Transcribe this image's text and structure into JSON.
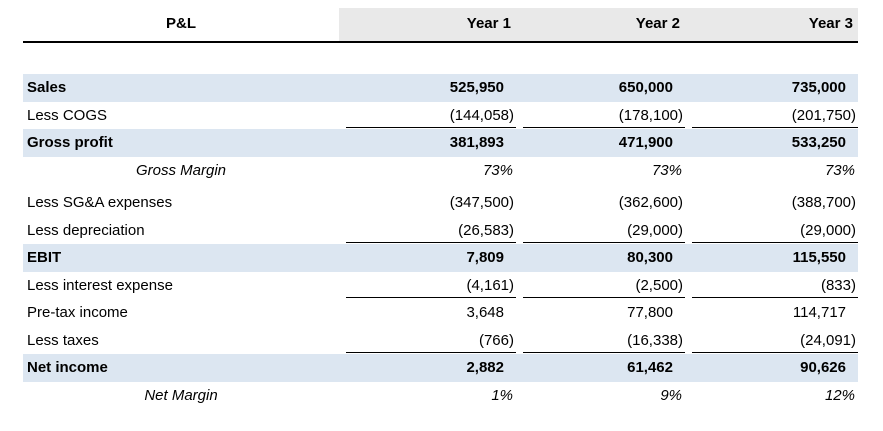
{
  "table": {
    "title": "P&L",
    "header": {
      "col0": "P&L",
      "col1": "Year 1",
      "col2": "Year 2",
      "col3": "Year 3"
    },
    "rows": [
      {
        "id": "sales",
        "label": "Sales",
        "values": [
          "525,950",
          "650,000",
          "735,000"
        ],
        "emphasis": "bold",
        "shaded": true,
        "underline": false
      },
      {
        "id": "less-cogs",
        "label": "Less COGS",
        "values": [
          "(144,058)",
          "(178,100)",
          "(201,750)"
        ],
        "emphasis": "none",
        "shaded": false,
        "underline": true
      },
      {
        "id": "gross-profit",
        "label": "Gross profit",
        "values": [
          "381,893",
          "471,900",
          "533,250"
        ],
        "emphasis": "bold",
        "shaded": true,
        "underline": false
      },
      {
        "id": "gross-margin",
        "label": "Gross Margin",
        "values": [
          "73%",
          "73%",
          "73%"
        ],
        "emphasis": "italic",
        "shaded": false,
        "underline": false
      },
      {
        "id": "less-sga",
        "label": "Less SG&A expenses",
        "values": [
          "(347,500)",
          "(362,600)",
          "(388,700)"
        ],
        "emphasis": "none",
        "shaded": false,
        "underline": false
      },
      {
        "id": "less-depreciation",
        "label": "Less depreciation",
        "values": [
          "(26,583)",
          "(29,000)",
          "(29,000)"
        ],
        "emphasis": "none",
        "shaded": false,
        "underline": true
      },
      {
        "id": "ebit",
        "label": "EBIT",
        "values": [
          "7,809",
          "80,300",
          "115,550"
        ],
        "emphasis": "bold",
        "shaded": true,
        "underline": false
      },
      {
        "id": "less-interest",
        "label": "Less interest expense",
        "values": [
          "(4,161)",
          "(2,500)",
          "(833)"
        ],
        "emphasis": "none",
        "shaded": false,
        "underline": true
      },
      {
        "id": "pretax-income",
        "label": "Pre-tax income",
        "values": [
          "3,648",
          "77,800",
          "114,717"
        ],
        "emphasis": "none",
        "shaded": false,
        "underline": false
      },
      {
        "id": "less-taxes",
        "label": "Less taxes",
        "values": [
          "(766)",
          "(16,338)",
          "(24,091)"
        ],
        "emphasis": "none",
        "shaded": false,
        "underline": true
      },
      {
        "id": "net-income",
        "label": "Net income",
        "values": [
          "2,882",
          "61,462",
          "90,626"
        ],
        "emphasis": "bold",
        "shaded": true,
        "underline": false
      },
      {
        "id": "net-margin",
        "label": "Net Margin",
        "values": [
          "1%",
          "9%",
          "12%"
        ],
        "emphasis": "italic",
        "shaded": false,
        "underline": false
      }
    ]
  },
  "colors": {
    "shaded_row_fill": "#dce6f1",
    "header_fill": "#e9e9e9",
    "rule_color": "#000000",
    "text_color": "#000000",
    "background": "#ffffff"
  }
}
